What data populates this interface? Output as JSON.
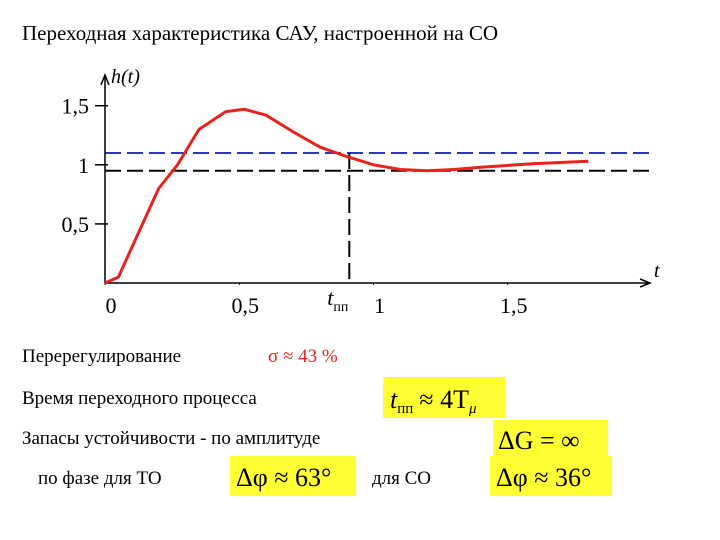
{
  "title": "Переходная характеристика САУ, настроенной на СО",
  "chart_data": {
    "type": "line",
    "ylabel": "h(t)",
    "xlabel": "t",
    "x": [
      0,
      0.05,
      0.1,
      0.2,
      0.27,
      0.35,
      0.45,
      0.52,
      0.6,
      0.7,
      0.8,
      0.9,
      0.93,
      1.0,
      1.1,
      1.2,
      1.3,
      1.4,
      1.6,
      1.8
    ],
    "values": [
      0,
      0.05,
      0.3,
      0.8,
      1.0,
      1.3,
      1.45,
      1.47,
      1.42,
      1.28,
      1.15,
      1.07,
      1.05,
      1.0,
      0.96,
      0.95,
      0.96,
      0.98,
      1.01,
      1.03
    ],
    "color": "#e8231e",
    "xlim": [
      0,
      2.03
    ],
    "ylim": [
      0,
      1.76
    ],
    "xticks": [
      0,
      {
        "value": 0.5,
        "label": "0,5"
      },
      1,
      {
        "value": 1.5,
        "label": "1,5"
      }
    ],
    "yticks": [
      {
        "value": 0.5,
        "label": "0,5"
      },
      1,
      {
        "value": 1.5,
        "label": "1,5"
      }
    ],
    "hlines": [
      {
        "value": 1.1,
        "color": "#2a3aa8"
      },
      {
        "value": 0.95,
        "color": "#000000"
      }
    ],
    "vline": {
      "x": 0.91,
      "t": "t",
      "sub": "пп"
    }
  },
  "notes": {
    "overshoot": {
      "label": "Перерегулирование",
      "formula": "σ ≈ 43 %"
    },
    "settling": {
      "label": "Время переходного процесса",
      "t": "t",
      "sub": "пп",
      "rest": "≈ 4T",
      "sub2": "μ"
    },
    "margins": {
      "label": "Запасы устойчивости  - по амплитуде",
      "formula": "ΔG = ∞"
    },
    "phase": {
      "label": "по фазе для ТО",
      "to": "Δφ ≈ 63°",
      "so_label": "для СО",
      "so": "Δφ ≈ 36°"
    }
  }
}
